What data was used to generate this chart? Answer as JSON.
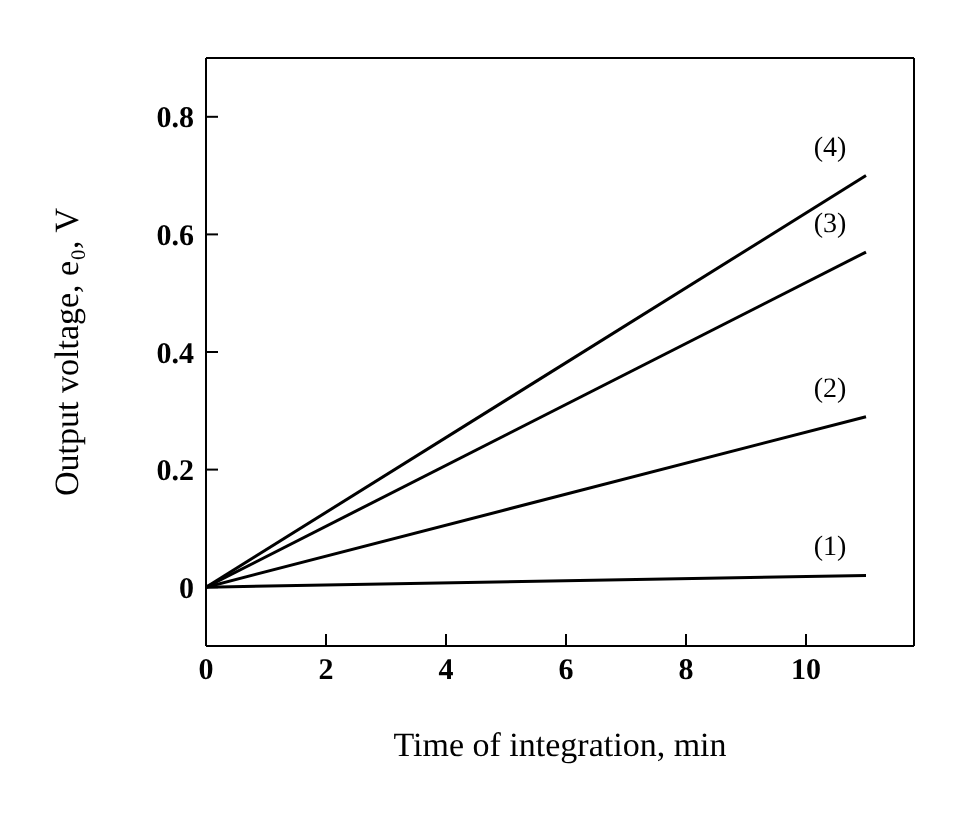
{
  "chart_data": {
    "type": "line",
    "xlabel": "Time of integration, min",
    "ylabel": "Output voltage, e₀, V",
    "x": [
      0,
      11
    ],
    "series": [
      {
        "name": "(1)",
        "color": "#000000",
        "values": [
          0,
          0.02
        ]
      },
      {
        "name": "(2)",
        "color": "#000000",
        "values": [
          0,
          0.29
        ]
      },
      {
        "name": "(3)",
        "color": "#000000",
        "values": [
          0,
          0.57
        ]
      },
      {
        "name": "(4)",
        "color": "#000000",
        "values": [
          0,
          0.7
        ]
      }
    ],
    "xlim": [
      0,
      11.8
    ],
    "xticks": [
      0,
      2,
      4,
      6,
      8,
      10
    ],
    "ylim": [
      -0.1,
      0.9
    ],
    "yticks": [
      0,
      0.2,
      0.4,
      0.6,
      0.8
    ],
    "grid": false,
    "legend": false,
    "marker": "none",
    "line_style": "solid"
  }
}
